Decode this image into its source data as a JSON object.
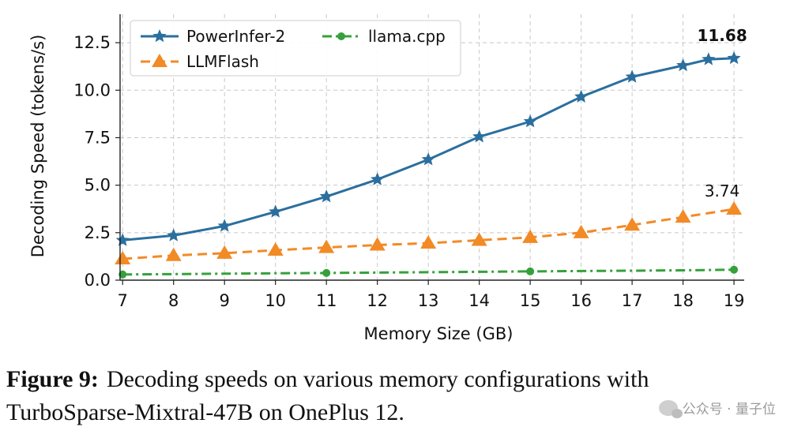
{
  "chart_data": {
    "type": "line",
    "xlabel": "Memory Size (GB)",
    "ylabel": "Decoding Speed (tokens/s)",
    "x": [
      7,
      8,
      9,
      10,
      11,
      12,
      13,
      14,
      15,
      16,
      17,
      18,
      18.5,
      19
    ],
    "xticks": [
      7,
      8,
      9,
      10,
      11,
      12,
      13,
      14,
      15,
      16,
      17,
      18,
      19
    ],
    "xlim": [
      6.95,
      19.2
    ],
    "ylim": [
      0,
      14
    ],
    "yticks": [
      0.0,
      2.5,
      5.0,
      7.5,
      10.0,
      12.5
    ],
    "yticklabels": [
      "0.0",
      "2.5",
      "5.0",
      "7.5",
      "10.0",
      "12.5"
    ],
    "grid": true,
    "legend": "top-left",
    "series": [
      {
        "name": "PowerInfer-2",
        "color": "#2b6f9e",
        "marker": "star",
        "linestyle": "solid",
        "values": [
          2.1,
          2.35,
          2.85,
          3.6,
          4.4,
          5.3,
          6.35,
          7.55,
          8.35,
          9.65,
          10.7,
          11.3,
          11.62,
          11.68
        ]
      },
      {
        "name": "LLMFlash",
        "color": "#f28a26",
        "marker": "triangle",
        "linestyle": "dashed",
        "values": [
          1.12,
          1.3,
          1.42,
          1.58,
          1.72,
          1.85,
          1.95,
          2.1,
          2.25,
          2.5,
          2.9,
          3.32,
          null,
          3.74
        ]
      },
      {
        "name": "llama.cpp",
        "color": "#35a13a",
        "marker": "circle",
        "linestyle": "dashdot",
        "markers_at": [
          7,
          11,
          15,
          19
        ],
        "values": [
          0.3,
          0.32,
          0.34,
          0.36,
          0.38,
          0.4,
          0.42,
          0.44,
          0.46,
          0.48,
          0.5,
          0.52,
          null,
          0.55
        ]
      }
    ],
    "annotations": [
      {
        "text": "11.68",
        "x": 19,
        "y": 11.68,
        "bold": true
      },
      {
        "text": "3.74",
        "x": 19,
        "y": 3.74,
        "bold": false
      }
    ]
  },
  "caption": {
    "label": "Figure 9:",
    "text": "Decoding speeds on various memory configurations with TurboSparse-Mixtral-47B on OnePlus 12."
  },
  "watermark": {
    "icon": "wechat-icon",
    "text": "公众号 · 量子位"
  }
}
